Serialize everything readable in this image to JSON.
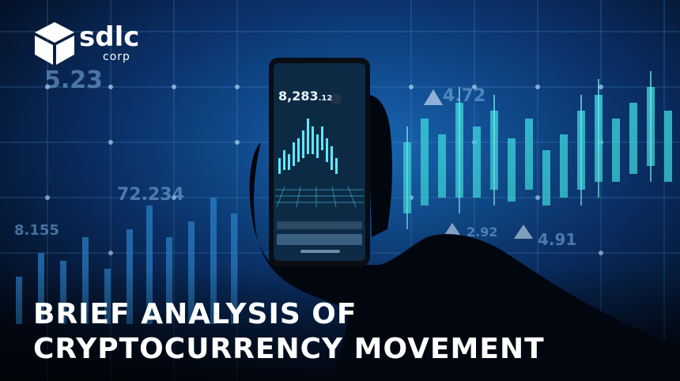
{
  "brand": {
    "logo_text": "sdlc",
    "logo_sub": "corp"
  },
  "headline": {
    "line1": "BRIEF ANALYSIS OF",
    "line2": "CRYPTOCURRENCY MOVEMENT"
  },
  "background_numbers": [
    "5.23",
    "72.234",
    "8.155",
    "4.72",
    "2.92",
    "4.91"
  ],
  "phone": {
    "price": "8,283",
    "price_decimal": ".12"
  },
  "colors": {
    "background": "#04122b",
    "accent": "#27a8e8",
    "text": "#ffffff"
  }
}
